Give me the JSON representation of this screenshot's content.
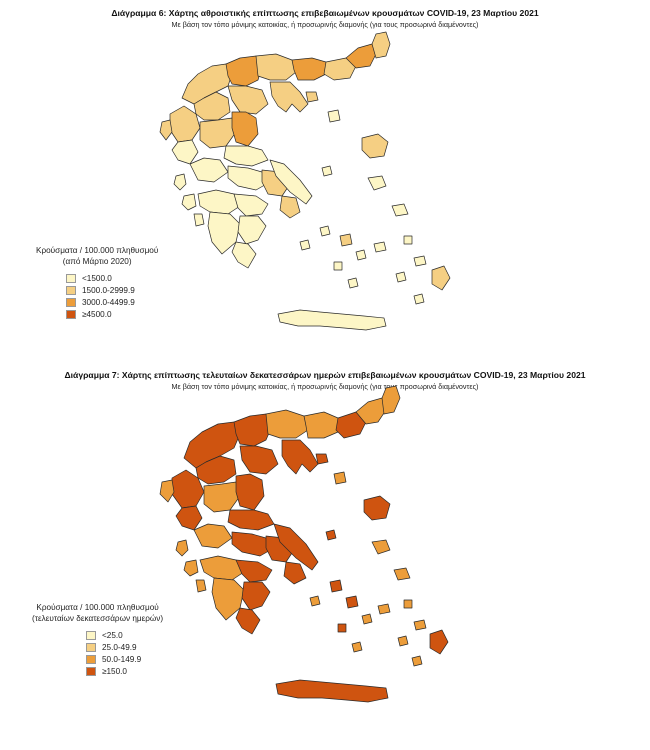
{
  "colors": {
    "c1": "#fdf6c6",
    "c2": "#f5cf83",
    "c3": "#ec9d3a",
    "c4": "#cf5410"
  },
  "diagram6": {
    "title": "Διάγραμμα 6: Χάρτης αθροιστικής επίπτωσης επιβεβαιωμένων κρουσμάτων COVID-19, 23 Μαρτίου 2021",
    "subtitle": "Με βάση τον τόπο μόνιμης κατοικίας, ή προσωρινής διαμονής (για τους προσωρινά διαμένοντες)",
    "legend": {
      "title_line1": "Κρούσματα / 100.000 πληθυσμού",
      "title_line2": "(από Μάρτιο 2020)",
      "items": [
        "<1500.0",
        "1500.0-2999.9",
        "3000.0-4499.9",
        "≥4500.0"
      ]
    }
  },
  "diagram7": {
    "title": "Διάγραμμα 7: Χάρτης επίπτωσης τελευταίων δεκατεσσάρων ημερών επιβεβαιωμένων κρουσμάτων COVID-19, 23 Μαρτίου 2021",
    "subtitle": "Με βάση τον τόπο μόνιμης κατοικίας, ή προσωρινής διαμονής (για τους προσωρινά διαμένοντες)",
    "legend": {
      "title_line1": "Κρούσματα / 100.000 πληθυσμού",
      "title_line2": "(τελευταίων δεκατεσσάρων ημερών)",
      "items": [
        "<25.0",
        "25.0-49.9",
        "50.0-149.9",
        "≥150.0"
      ]
    }
  }
}
